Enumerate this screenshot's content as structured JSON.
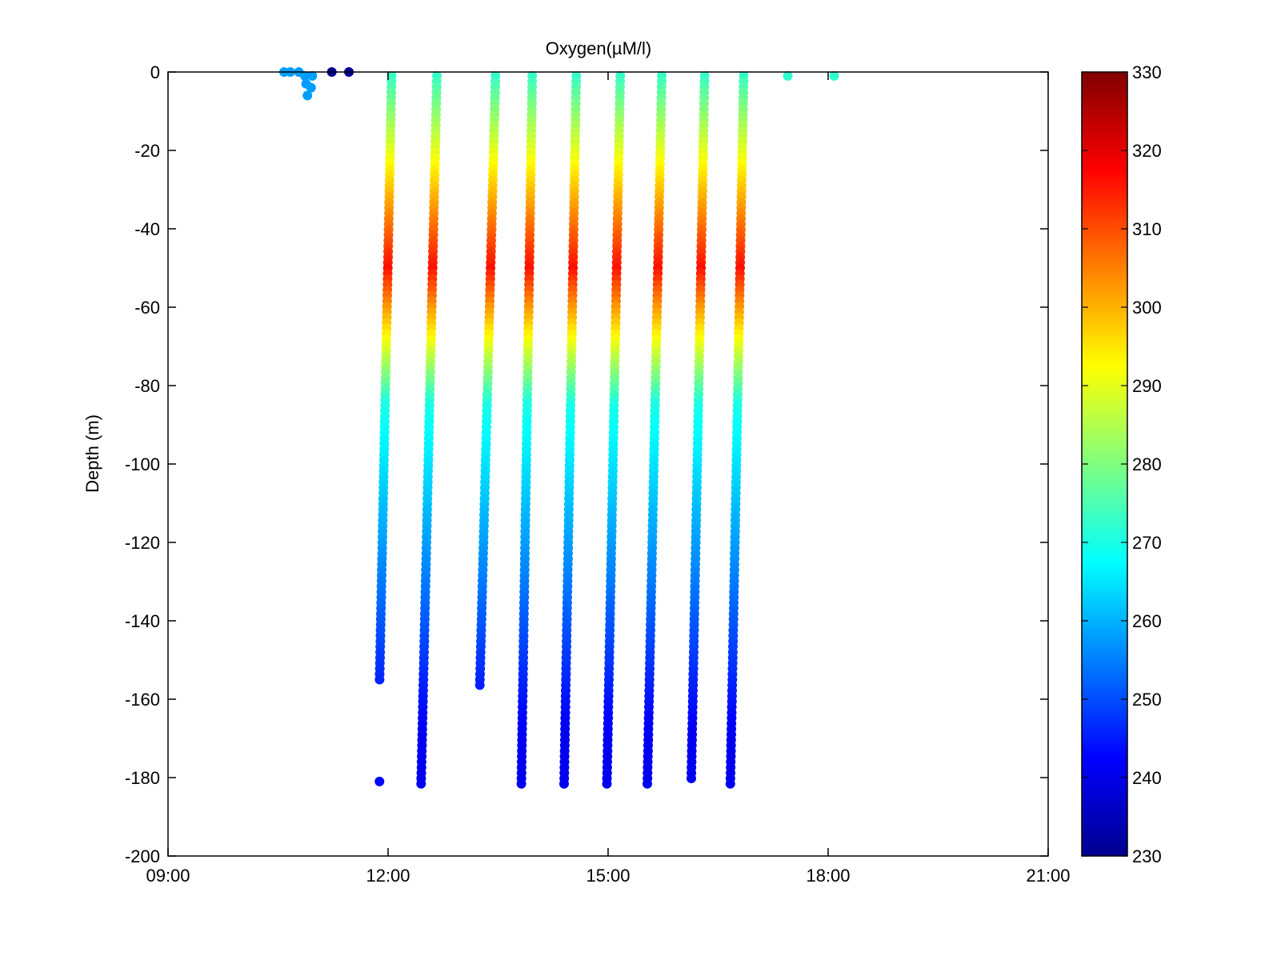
{
  "chart_data": {
    "type": "scatter",
    "title": "Oxygen(µM/l)",
    "xlabel": "",
    "ylabel": "Depth (m)",
    "xlim": [
      "09:00",
      "21:00"
    ],
    "ylim": [
      -200,
      0
    ],
    "x_ticks": [
      "09:00",
      "12:00",
      "15:00",
      "18:00",
      "21:00"
    ],
    "y_ticks": [
      0,
      -20,
      -40,
      -60,
      -80,
      -100,
      -120,
      -140,
      -160,
      -180,
      -200
    ],
    "grid": false,
    "colorbar": {
      "range": [
        230,
        330
      ],
      "ticks": [
        330,
        320,
        310,
        300,
        290,
        280,
        270,
        260,
        250,
        240,
        230
      ],
      "colormap": "jet"
    },
    "profiles": [
      {
        "time_start": "11:53",
        "time_end": "12:03",
        "depth_max": -156
      },
      {
        "time_start": "12:27",
        "time_end": "12:40",
        "depth_max": -182
      },
      {
        "time_start": "13:15",
        "time_end": "13:28",
        "depth_max": -157
      },
      {
        "time_start": "13:49",
        "time_end": "13:58",
        "depth_max": -182
      },
      {
        "time_start": "14:24",
        "time_end": "14:34",
        "depth_max": -182
      },
      {
        "time_start": "14:59",
        "time_end": "15:10",
        "depth_max": -182
      },
      {
        "time_start": "15:32",
        "time_end": "15:44",
        "depth_max": -183
      },
      {
        "time_start": "16:08",
        "time_end": "16:19",
        "depth_max": -181
      },
      {
        "time_start": "16:40",
        "time_end": "16:51",
        "depth_max": -182
      }
    ],
    "isolated_points": [
      {
        "time": "10:35",
        "depth": 0,
        "oxygen": 258
      },
      {
        "time": "10:40",
        "depth": 0,
        "oxygen": 258
      },
      {
        "time": "10:47",
        "depth": 0,
        "oxygen": 258
      },
      {
        "time": "10:52",
        "depth": -1,
        "oxygen": 258
      },
      {
        "time": "10:53",
        "depth": -3,
        "oxygen": 258
      },
      {
        "time": "10:54",
        "depth": -6,
        "oxygen": 258
      },
      {
        "time": "10:57",
        "depth": -4,
        "oxygen": 258
      },
      {
        "time": "10:58",
        "depth": -1,
        "oxygen": 258
      },
      {
        "time": "11:14",
        "depth": 0,
        "oxygen": 232
      },
      {
        "time": "11:28",
        "depth": 0,
        "oxygen": 232
      },
      {
        "time": "11:53",
        "depth": -181,
        "oxygen": 243
      },
      {
        "time": "17:27",
        "depth": -1,
        "oxygen": 272
      },
      {
        "time": "18:05",
        "depth": -1,
        "oxygen": 272
      }
    ]
  }
}
